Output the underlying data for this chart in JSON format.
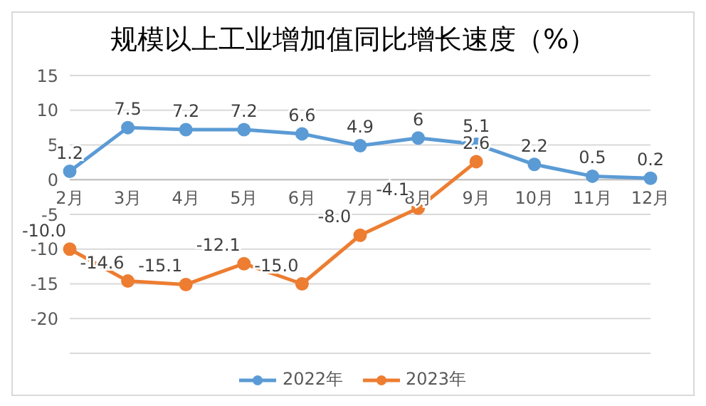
{
  "chart_data": {
    "type": "line",
    "title": "规模以上工业增加值同比增长速度（%）",
    "categories": [
      "2月",
      "3月",
      "4月",
      "5月",
      "6月",
      "7月",
      "8月",
      "9月",
      "10月",
      "11月",
      "12月"
    ],
    "series": [
      {
        "name": "2022年",
        "color": "#5b9bd5",
        "values": [
          1.2,
          7.5,
          7.2,
          7.2,
          6.6,
          4.9,
          6,
          5.1,
          2.2,
          0.5,
          0.2
        ],
        "value_labels": [
          "1.2",
          "7.5",
          "7.2",
          "7.2",
          "6.6",
          "4.9",
          "6",
          "5.1",
          "2.2",
          "0.5",
          "0.2"
        ]
      },
      {
        "name": "2023年",
        "color": "#ed7d31",
        "values": [
          -10.0,
          -14.6,
          -15.1,
          -12.1,
          -15.0,
          -8.0,
          -4.1,
          2.6,
          null,
          null,
          null
        ],
        "value_labels": [
          "-10.0",
          "-14.6",
          "-15.1",
          "-12.1",
          "-15.0",
          "-8.0",
          "-4.1",
          "2.6",
          null,
          null,
          null
        ]
      }
    ],
    "ylim": [
      -25,
      15
    ],
    "yticks": [
      {
        "value": -25,
        "label": null
      },
      -20,
      -15,
      -10,
      -5,
      0,
      5,
      10,
      15
    ],
    "grid": "y",
    "legend": "bottom",
    "marker": "circle",
    "line_style": "solid"
  }
}
